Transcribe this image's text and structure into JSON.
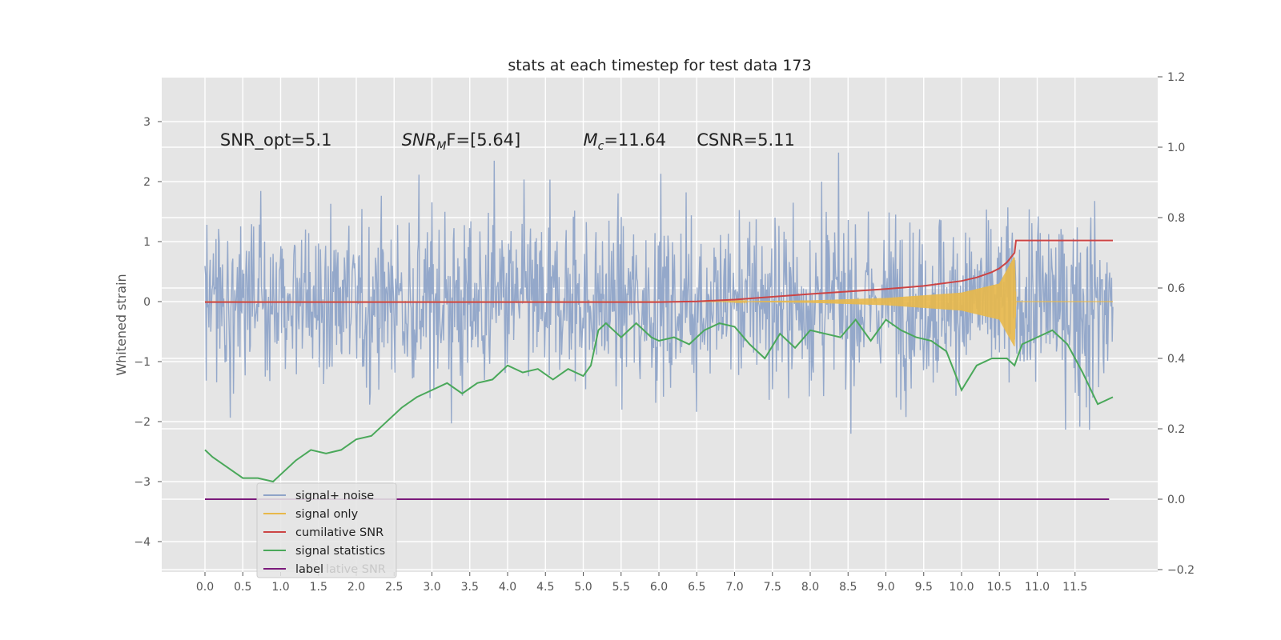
{
  "chart_data": {
    "type": "line",
    "title": "stats at each timestep for test data 173",
    "ylabel": "Whitened strain",
    "xlabel": "",
    "x_ticks": [
      "0.0",
      "0.5",
      "1.0",
      "1.5",
      "2.0",
      "2.5",
      "3.0",
      "3.5",
      "4.0",
      "4.5",
      "5.0",
      "5.5",
      "6.0",
      "6.5",
      "7.0",
      "7.5",
      "8.0",
      "8.5",
      "9.0",
      "9.5",
      "10.0",
      "10.5",
      "11.0",
      "11.5"
    ],
    "y_left_ticks": [
      "3",
      "2",
      "1",
      "0",
      "−1",
      "−2",
      "−3",
      "−4"
    ],
    "y_right_ticks": [
      "1.2",
      "1.0",
      "0.8",
      "0.6",
      "0.4",
      "0.2",
      "0.0",
      "−0.2"
    ],
    "xlim": [
      -0.6,
      12.6
    ],
    "ylim_left": [
      -4.5,
      3.7
    ],
    "ylim_right": [
      -0.2,
      1.2
    ],
    "grid": true,
    "legend_position": "lower-left",
    "annotations": [
      {
        "id": "snr-opt",
        "text": "SNR_opt=5.1",
        "x": 0.2,
        "y": 2.6
      },
      {
        "id": "snr-mf",
        "prefix": "SNR",
        "sub": "M",
        "suffix": "F=[5.64]",
        "x": 2.6,
        "y": 2.6
      },
      {
        "id": "mc",
        "prefix": "M",
        "sub": "c",
        "suffix": "=11.64",
        "x": 5.0,
        "y": 2.6
      },
      {
        "id": "csnr",
        "text": "CSNR=5.11",
        "x": 6.5,
        "y": 2.6
      }
    ],
    "series": [
      {
        "name": "signal+ noise",
        "color": "#8fa4c8",
        "axis": "left",
        "description_envelope": [
          -2.0,
          2.0
        ],
        "x_range": [
          0.0,
          12.0
        ]
      },
      {
        "name": "signal only",
        "color": "#e8b84a",
        "axis": "left",
        "envelope": {
          "x": [
            6.8,
            8.0,
            9.0,
            10.0,
            10.5,
            10.7,
            10.72,
            12.0
          ],
          "amp": [
            0.0,
            0.02,
            0.06,
            0.15,
            0.3,
            0.75,
            0.0,
            0.0
          ]
        }
      },
      {
        "name": "cumilative SNR",
        "color": "#cc4444",
        "axis": "right",
        "x": [
          0.0,
          6.0,
          6.5,
          7.0,
          7.5,
          8.0,
          8.5,
          9.0,
          9.5,
          10.0,
          10.2,
          10.4,
          10.5,
          10.6,
          10.7,
          10.72,
          12.0
        ],
        "y": [
          0.56,
          0.56,
          0.562,
          0.567,
          0.575,
          0.583,
          0.59,
          0.597,
          0.606,
          0.62,
          0.63,
          0.645,
          0.656,
          0.673,
          0.7,
          0.735,
          0.735
        ]
      },
      {
        "name": "signal statistics",
        "color": "#4aa85a",
        "axis": "right",
        "x": [
          0.0,
          0.1,
          0.3,
          0.5,
          0.7,
          0.9,
          1.0,
          1.2,
          1.4,
          1.6,
          1.8,
          2.0,
          2.2,
          2.4,
          2.6,
          2.8,
          3.0,
          3.2,
          3.4,
          3.6,
          3.8,
          4.0,
          4.2,
          4.4,
          4.6,
          4.8,
          5.0,
          5.1,
          5.2,
          5.3,
          5.5,
          5.7,
          5.9,
          6.0,
          6.2,
          6.4,
          6.6,
          6.8,
          7.0,
          7.2,
          7.4,
          7.6,
          7.8,
          8.0,
          8.2,
          8.4,
          8.6,
          8.8,
          9.0,
          9.2,
          9.4,
          9.6,
          9.8,
          10.0,
          10.2,
          10.4,
          10.6,
          10.7,
          10.8,
          11.0,
          11.2,
          11.4,
          11.6,
          11.8,
          12.0
        ],
        "y": [
          0.14,
          0.12,
          0.09,
          0.06,
          0.06,
          0.05,
          0.07,
          0.11,
          0.14,
          0.13,
          0.14,
          0.17,
          0.18,
          0.22,
          0.26,
          0.29,
          0.31,
          0.33,
          0.3,
          0.33,
          0.34,
          0.38,
          0.36,
          0.37,
          0.34,
          0.37,
          0.35,
          0.38,
          0.48,
          0.5,
          0.46,
          0.5,
          0.46,
          0.45,
          0.46,
          0.44,
          0.48,
          0.5,
          0.49,
          0.44,
          0.4,
          0.47,
          0.43,
          0.48,
          0.47,
          0.46,
          0.51,
          0.45,
          0.51,
          0.48,
          0.46,
          0.45,
          0.42,
          0.31,
          0.38,
          0.4,
          0.4,
          0.38,
          0.44,
          0.46,
          0.48,
          0.44,
          0.36,
          0.27,
          0.29
        ]
      },
      {
        "name": "label",
        "color": "#7b1a7b",
        "axis": "right",
        "x": [
          0.0,
          11.95
        ],
        "y": [
          0.0,
          0.0
        ]
      }
    ],
    "legend": [
      {
        "label": "signal+ noise",
        "color": "#8fa4c8"
      },
      {
        "label": "signal only",
        "color": "#e8b84a"
      },
      {
        "label": "cumilative SNR",
        "color": "#cc4444"
      },
      {
        "label": "signal statistics",
        "color": "#4aa85a"
      },
      {
        "label": "label",
        "color": "#7b1a7b"
      }
    ],
    "legend_overlap_text": "lative SNR"
  }
}
